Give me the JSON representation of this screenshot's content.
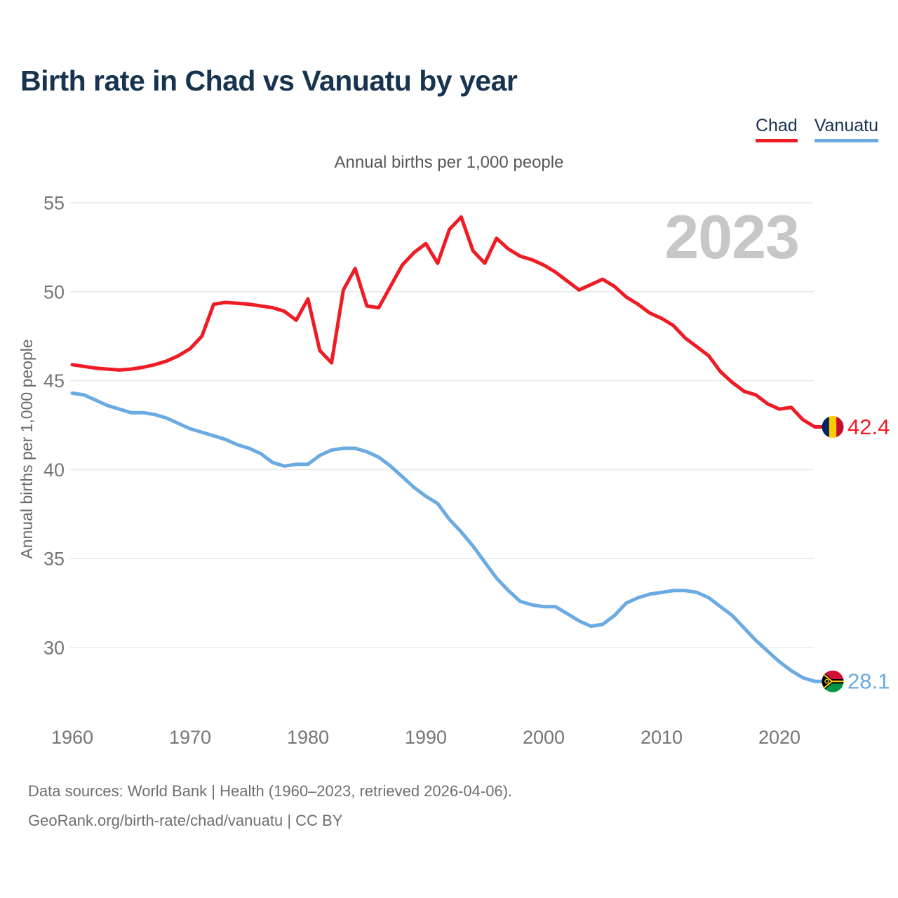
{
  "header": {
    "title": "Birth rate in Chad vs Vanuatu by year"
  },
  "legend": {
    "items": [
      {
        "label": "Chad",
        "color": "#ee1c25"
      },
      {
        "label": "Vanuatu",
        "color": "#6cabe1"
      }
    ]
  },
  "subtitle": "Annual births per 1,000 people",
  "watermark": "2023",
  "y_axis": {
    "label": "Annual births per 1,000 people",
    "ticks": [
      55,
      50,
      45,
      40,
      35,
      30
    ]
  },
  "x_axis": {
    "ticks": [
      1960,
      1970,
      1980,
      1990,
      2000,
      2010,
      2020
    ]
  },
  "end_labels": {
    "chad": "42.4",
    "vanuatu": "28.1"
  },
  "footer": {
    "line1": "Data sources: World Bank | Health (1960–2023, retrieved 2026-04-06).",
    "line2": "GeoRank.org/birth-rate/chad/vanuatu | CC BY"
  },
  "chart_data": {
    "type": "line",
    "title": "Annual births per 1,000 people",
    "xlabel": "",
    "ylabel": "Annual births per 1,000 people",
    "ylim": [
      30,
      55
    ],
    "grid": true,
    "legend_position": "top-right",
    "y_ticks": [
      55,
      50,
      45,
      40,
      35,
      30
    ],
    "x_ticks": [
      1960,
      1970,
      1980,
      1990,
      2000,
      2010,
      2020
    ],
    "years": [
      1960,
      1961,
      1962,
      1963,
      1964,
      1965,
      1966,
      1967,
      1968,
      1969,
      1970,
      1971,
      1972,
      1973,
      1974,
      1975,
      1976,
      1977,
      1978,
      1979,
      1980,
      1981,
      1982,
      1983,
      1984,
      1985,
      1986,
      1987,
      1988,
      1989,
      1990,
      1991,
      1992,
      1993,
      1994,
      1995,
      1996,
      1997,
      1998,
      1999,
      2000,
      2001,
      2002,
      2003,
      2004,
      2005,
      2006,
      2007,
      2008,
      2009,
      2010,
      2011,
      2012,
      2013,
      2014,
      2015,
      2016,
      2017,
      2018,
      2019,
      2020,
      2021,
      2022,
      2023
    ],
    "series": [
      {
        "name": "Chad",
        "color": "#ee1c25",
        "flag": "chad",
        "end_label": "42.4",
        "values": [
          45.9,
          45.8,
          45.7,
          45.65,
          45.6,
          45.65,
          45.75,
          45.9,
          46.1,
          46.4,
          46.8,
          47.5,
          49.3,
          49.4,
          49.35,
          49.3,
          49.2,
          49.1,
          48.9,
          48.4,
          49.6,
          46.7,
          46.0,
          50.1,
          51.3,
          49.2,
          49.1,
          50.3,
          51.5,
          52.2,
          52.7,
          51.6,
          53.5,
          54.2,
          52.3,
          51.6,
          53.0,
          52.4,
          52.0,
          51.8,
          51.5,
          51.1,
          50.6,
          50.1,
          50.4,
          50.7,
          50.3,
          49.7,
          49.3,
          48.8,
          48.5,
          48.1,
          47.4,
          46.9,
          46.4,
          45.5,
          44.9,
          44.4,
          44.2,
          43.7,
          43.4,
          43.5,
          42.8,
          42.4
        ]
      },
      {
        "name": "Vanuatu",
        "color": "#6cabe1",
        "flag": "vanuatu",
        "end_label": "28.1",
        "values": [
          44.3,
          44.2,
          43.9,
          43.6,
          43.4,
          43.2,
          43.2,
          43.1,
          42.9,
          42.6,
          42.3,
          42.1,
          41.9,
          41.7,
          41.4,
          41.2,
          40.9,
          40.4,
          40.2,
          40.3,
          40.3,
          40.8,
          41.1,
          41.2,
          41.2,
          41.0,
          40.7,
          40.2,
          39.6,
          39.0,
          38.5,
          38.1,
          37.2,
          36.5,
          35.7,
          34.8,
          33.9,
          33.2,
          32.6,
          32.4,
          32.3,
          32.3,
          31.9,
          31.5,
          31.2,
          31.3,
          31.8,
          32.5,
          32.8,
          33.0,
          33.1,
          33.2,
          33.2,
          33.1,
          32.8,
          32.3,
          31.8,
          31.1,
          30.4,
          29.8,
          29.2,
          28.7,
          28.3,
          28.1
        ]
      }
    ]
  }
}
